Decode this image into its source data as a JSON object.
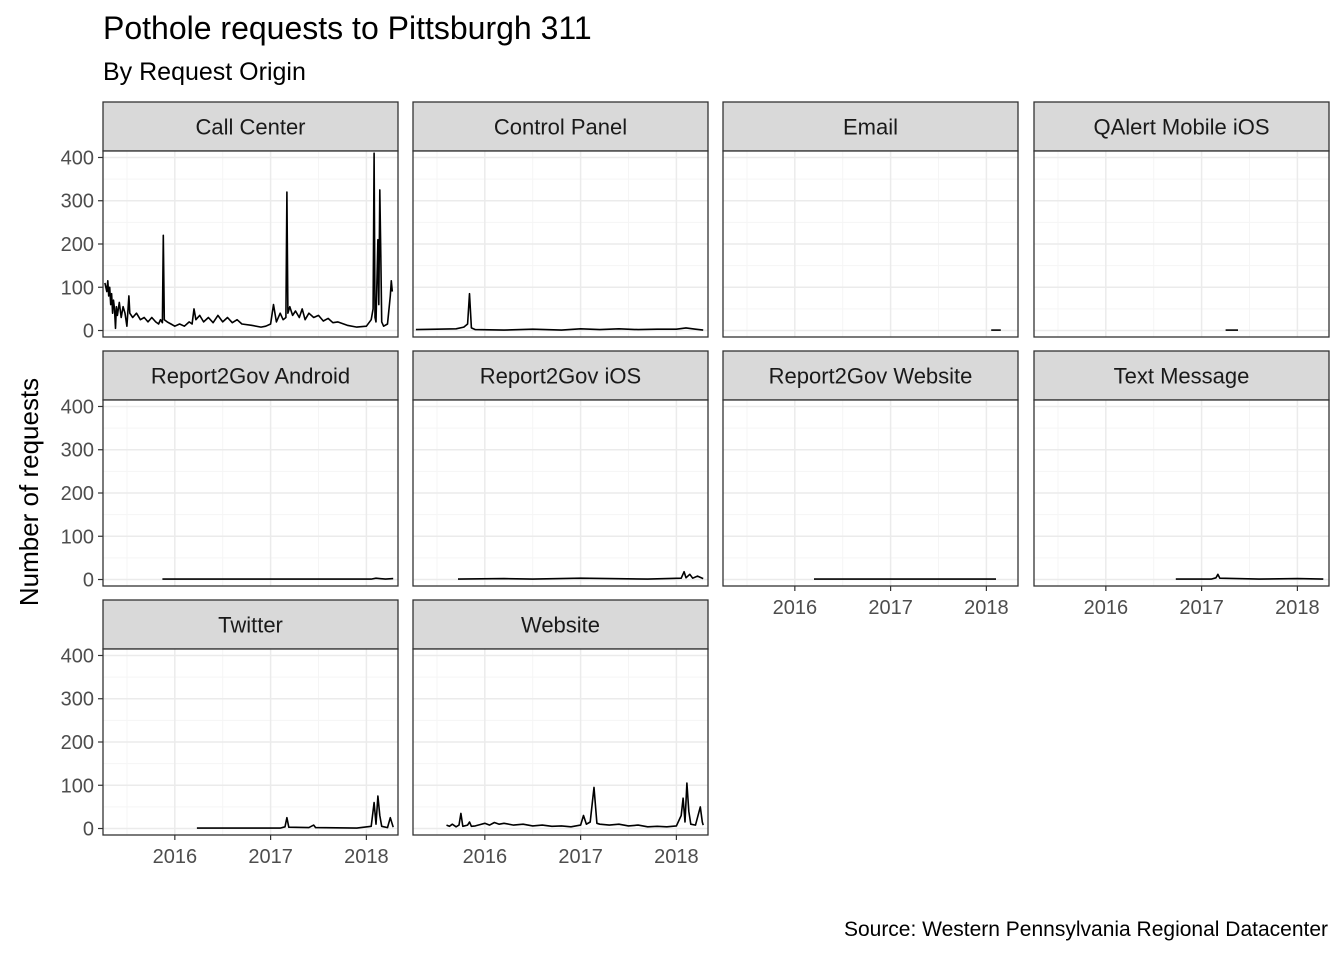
{
  "title": "Pothole requests to Pittsburgh 311",
  "subtitle": "By Request Origin",
  "caption": "Source: Western Pennsylvania Regional Datacenter",
  "colors": {
    "line": "#000000",
    "strip_fill": "#d9d9d9",
    "panel_border": "#333333",
    "grid_major": "#ebebeb",
    "grid_minor": "#f5f5f5",
    "tick_text": "#4d4d4d"
  },
  "chart_data": {
    "type": "line",
    "facet_layout": {
      "columns": 4,
      "rows": 3,
      "x_axis_on": [
        "Report2Gov Website",
        "Text Message",
        "Twitter",
        "Website"
      ]
    },
    "ylabel": "Number of requests",
    "xlabel": "",
    "xlim": [
      2015.25,
      2018.33
    ],
    "ylim": [
      -15,
      415
    ],
    "x_ticks": [
      2016,
      2017,
      2018
    ],
    "x_tick_labels": [
      "2016",
      "2017",
      "2018"
    ],
    "y_ticks": [
      0,
      100,
      200,
      300,
      400
    ],
    "y_tick_labels": [
      "0",
      "100",
      "200",
      "300",
      "400"
    ],
    "grid": true,
    "series": [
      {
        "name": "Call Center",
        "points": [
          [
            2015.27,
            110
          ],
          [
            2015.29,
            90
          ],
          [
            2015.3,
            115
          ],
          [
            2015.31,
            80
          ],
          [
            2015.32,
            100
          ],
          [
            2015.33,
            60
          ],
          [
            2015.34,
            85
          ],
          [
            2015.35,
            40
          ],
          [
            2015.36,
            70
          ],
          [
            2015.37,
            50
          ],
          [
            2015.38,
            5
          ],
          [
            2015.39,
            55
          ],
          [
            2015.4,
            35
          ],
          [
            2015.42,
            65
          ],
          [
            2015.44,
            30
          ],
          [
            2015.46,
            55
          ],
          [
            2015.48,
            40
          ],
          [
            2015.5,
            10
          ],
          [
            2015.52,
            80
          ],
          [
            2015.53,
            40
          ],
          [
            2015.56,
            30
          ],
          [
            2015.6,
            40
          ],
          [
            2015.64,
            25
          ],
          [
            2015.68,
            30
          ],
          [
            2015.72,
            20
          ],
          [
            2015.76,
            30
          ],
          [
            2015.8,
            20
          ],
          [
            2015.83,
            15
          ],
          [
            2015.85,
            25
          ],
          [
            2015.87,
            18
          ],
          [
            2015.88,
            220
          ],
          [
            2015.89,
            25
          ],
          [
            2015.92,
            20
          ],
          [
            2015.96,
            15
          ],
          [
            2016.0,
            10
          ],
          [
            2016.05,
            15
          ],
          [
            2016.1,
            10
          ],
          [
            2016.15,
            20
          ],
          [
            2016.18,
            15
          ],
          [
            2016.2,
            50
          ],
          [
            2016.22,
            25
          ],
          [
            2016.26,
            35
          ],
          [
            2016.3,
            20
          ],
          [
            2016.35,
            30
          ],
          [
            2016.4,
            18
          ],
          [
            2016.45,
            35
          ],
          [
            2016.5,
            20
          ],
          [
            2016.55,
            30
          ],
          [
            2016.6,
            18
          ],
          [
            2016.65,
            25
          ],
          [
            2016.7,
            15
          ],
          [
            2016.8,
            12
          ],
          [
            2016.9,
            8
          ],
          [
            2016.95,
            10
          ],
          [
            2017.0,
            15
          ],
          [
            2017.03,
            60
          ],
          [
            2017.06,
            20
          ],
          [
            2017.1,
            40
          ],
          [
            2017.13,
            25
          ],
          [
            2017.16,
            30
          ],
          [
            2017.17,
            320
          ],
          [
            2017.18,
            40
          ],
          [
            2017.2,
            55
          ],
          [
            2017.23,
            35
          ],
          [
            2017.26,
            45
          ],
          [
            2017.3,
            30
          ],
          [
            2017.33,
            50
          ],
          [
            2017.36,
            25
          ],
          [
            2017.4,
            40
          ],
          [
            2017.45,
            30
          ],
          [
            2017.5,
            35
          ],
          [
            2017.55,
            22
          ],
          [
            2017.6,
            28
          ],
          [
            2017.65,
            18
          ],
          [
            2017.7,
            20
          ],
          [
            2017.8,
            12
          ],
          [
            2017.9,
            8
          ],
          [
            2018.0,
            10
          ],
          [
            2018.05,
            25
          ],
          [
            2018.07,
            50
          ],
          [
            2018.08,
            410
          ],
          [
            2018.09,
            30
          ],
          [
            2018.1,
            20
          ],
          [
            2018.12,
            210
          ],
          [
            2018.13,
            60
          ],
          [
            2018.14,
            325
          ],
          [
            2018.15,
            175
          ],
          [
            2018.16,
            20
          ],
          [
            2018.18,
            10
          ],
          [
            2018.22,
            15
          ],
          [
            2018.25,
            80
          ],
          [
            2018.26,
            115
          ],
          [
            2018.27,
            90
          ]
        ]
      },
      {
        "name": "Control Panel",
        "points": [
          [
            2015.28,
            2
          ],
          [
            2015.5,
            3
          ],
          [
            2015.7,
            4
          ],
          [
            2015.78,
            8
          ],
          [
            2015.82,
            15
          ],
          [
            2015.84,
            85
          ],
          [
            2015.86,
            6
          ],
          [
            2015.9,
            2
          ],
          [
            2016.2,
            1
          ],
          [
            2016.5,
            3
          ],
          [
            2016.8,
            1
          ],
          [
            2017.0,
            4
          ],
          [
            2017.2,
            2
          ],
          [
            2017.4,
            4
          ],
          [
            2017.6,
            2
          ],
          [
            2017.8,
            3
          ],
          [
            2018.0,
            3
          ],
          [
            2018.1,
            6
          ],
          [
            2018.2,
            3
          ],
          [
            2018.28,
            1
          ]
        ]
      },
      {
        "name": "Email",
        "points": [
          [
            2018.05,
            1
          ],
          [
            2018.15,
            1
          ]
        ]
      },
      {
        "name": "QAlert Mobile iOS",
        "points": [
          [
            2017.25,
            1
          ],
          [
            2017.38,
            1
          ]
        ]
      },
      {
        "name": "Report2Gov Android",
        "points": [
          [
            2015.87,
            1
          ],
          [
            2017.5,
            1
          ],
          [
            2018.05,
            1
          ],
          [
            2018.1,
            3
          ],
          [
            2018.2,
            1
          ],
          [
            2018.28,
            2
          ]
        ]
      },
      {
        "name": "Report2Gov iOS",
        "points": [
          [
            2015.72,
            1
          ],
          [
            2016.2,
            2
          ],
          [
            2016.5,
            1
          ],
          [
            2017.0,
            3
          ],
          [
            2017.3,
            2
          ],
          [
            2017.7,
            1
          ],
          [
            2018.05,
            3
          ],
          [
            2018.08,
            18
          ],
          [
            2018.1,
            4
          ],
          [
            2018.14,
            12
          ],
          [
            2018.17,
            3
          ],
          [
            2018.22,
            8
          ],
          [
            2018.28,
            2
          ]
        ]
      },
      {
        "name": "Report2Gov Website",
        "points": [
          [
            2016.2,
            1
          ],
          [
            2017.0,
            1
          ],
          [
            2018.1,
            1
          ]
        ]
      },
      {
        "name": "Text Message",
        "points": [
          [
            2016.73,
            1
          ],
          [
            2017.1,
            1
          ],
          [
            2017.15,
            4
          ],
          [
            2017.17,
            12
          ],
          [
            2017.19,
            3
          ],
          [
            2017.6,
            1
          ],
          [
            2018.0,
            2
          ],
          [
            2018.27,
            1
          ]
        ]
      },
      {
        "name": "Twitter",
        "points": [
          [
            2016.23,
            1
          ],
          [
            2016.8,
            1
          ],
          [
            2017.1,
            1
          ],
          [
            2017.15,
            4
          ],
          [
            2017.17,
            25
          ],
          [
            2017.19,
            3
          ],
          [
            2017.4,
            2
          ],
          [
            2017.45,
            8
          ],
          [
            2017.47,
            2
          ],
          [
            2017.9,
            1
          ],
          [
            2018.05,
            5
          ],
          [
            2018.08,
            60
          ],
          [
            2018.1,
            10
          ],
          [
            2018.12,
            75
          ],
          [
            2018.14,
            30
          ],
          [
            2018.16,
            5
          ],
          [
            2018.22,
            2
          ],
          [
            2018.25,
            25
          ],
          [
            2018.28,
            3
          ]
        ]
      },
      {
        "name": "Website",
        "points": [
          [
            2015.6,
            8
          ],
          [
            2015.63,
            5
          ],
          [
            2015.66,
            10
          ],
          [
            2015.7,
            4
          ],
          [
            2015.73,
            8
          ],
          [
            2015.75,
            35
          ],
          [
            2015.77,
            5
          ],
          [
            2015.82,
            8
          ],
          [
            2015.84,
            15
          ],
          [
            2015.86,
            5
          ],
          [
            2015.9,
            6
          ],
          [
            2015.95,
            9
          ],
          [
            2016.0,
            12
          ],
          [
            2016.05,
            8
          ],
          [
            2016.1,
            14
          ],
          [
            2016.15,
            10
          ],
          [
            2016.2,
            12
          ],
          [
            2016.3,
            8
          ],
          [
            2016.4,
            10
          ],
          [
            2016.5,
            6
          ],
          [
            2016.6,
            8
          ],
          [
            2016.7,
            5
          ],
          [
            2016.8,
            6
          ],
          [
            2016.9,
            4
          ],
          [
            2017.0,
            8
          ],
          [
            2017.03,
            30
          ],
          [
            2017.06,
            10
          ],
          [
            2017.1,
            15
          ],
          [
            2017.14,
            95
          ],
          [
            2017.17,
            12
          ],
          [
            2017.2,
            10
          ],
          [
            2017.3,
            8
          ],
          [
            2017.4,
            10
          ],
          [
            2017.5,
            6
          ],
          [
            2017.6,
            8
          ],
          [
            2017.7,
            4
          ],
          [
            2017.8,
            5
          ],
          [
            2017.9,
            4
          ],
          [
            2018.0,
            6
          ],
          [
            2018.05,
            30
          ],
          [
            2018.07,
            70
          ],
          [
            2018.09,
            15
          ],
          [
            2018.11,
            105
          ],
          [
            2018.13,
            40
          ],
          [
            2018.15,
            10
          ],
          [
            2018.2,
            8
          ],
          [
            2018.25,
            50
          ],
          [
            2018.27,
            15
          ],
          [
            2018.28,
            8
          ]
        ]
      }
    ]
  }
}
